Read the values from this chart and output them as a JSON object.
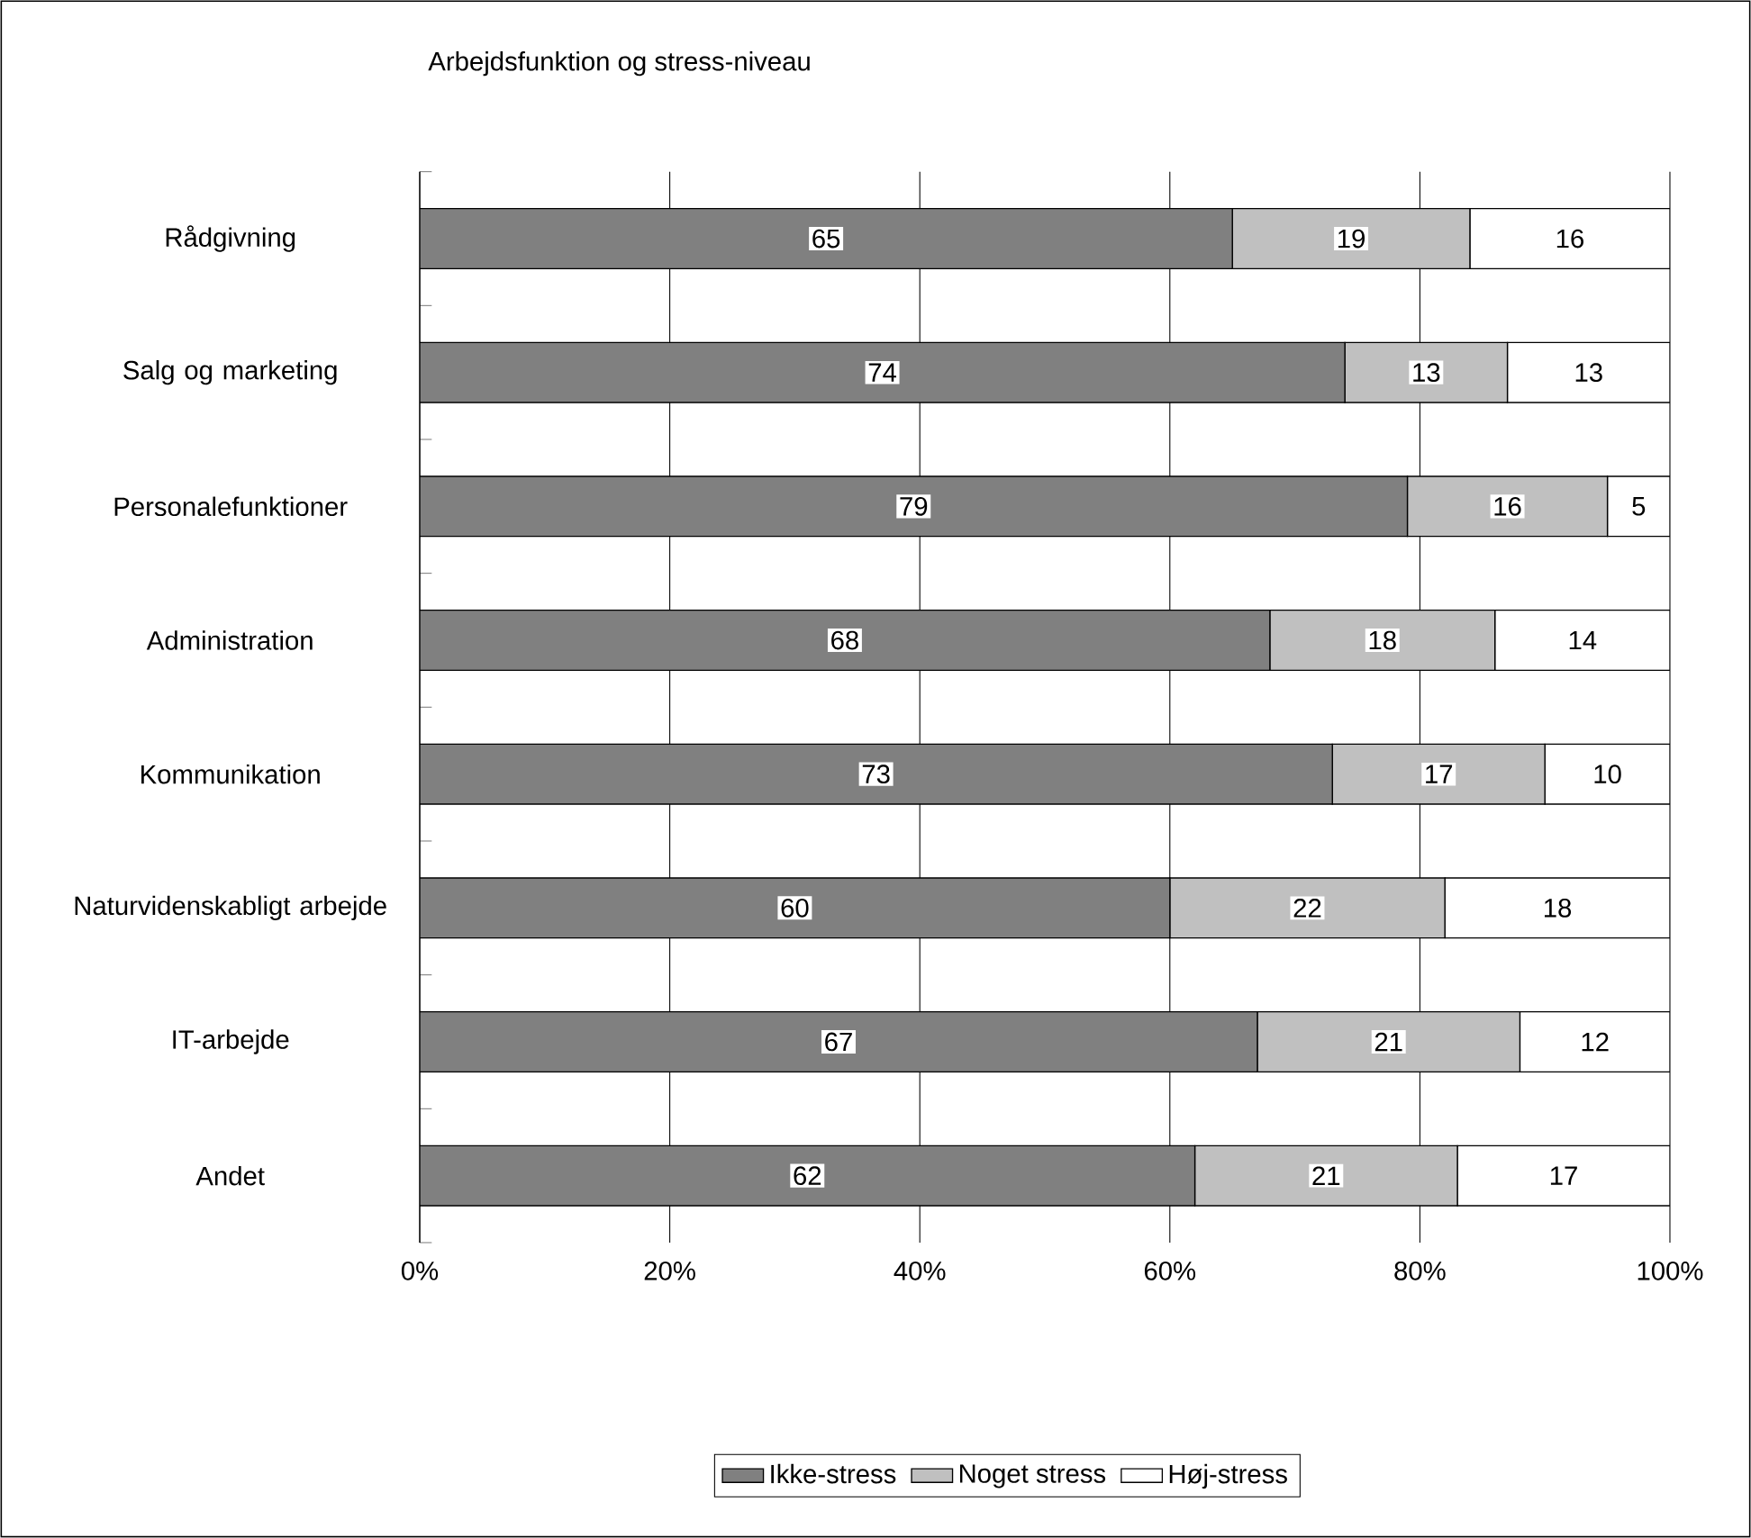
{
  "chart_data": {
    "type": "bar",
    "orientation": "horizontal",
    "stacked": true,
    "title": "Arbejdsfunktion og stress-niveau",
    "categories": [
      "Rådgivning",
      "Salg og marketing",
      "Personalefunktioner",
      "Administration",
      "Kommunikation",
      "Naturvidenskabligt arbejde",
      "IT-arbejde",
      "Andet"
    ],
    "series": [
      {
        "name": "Ikke-stress",
        "color": "#808080",
        "values": [
          65,
          74,
          79,
          68,
          73,
          60,
          67,
          62
        ]
      },
      {
        "name": "Noget stress",
        "color": "#c0c0c0",
        "values": [
          19,
          13,
          16,
          18,
          17,
          22,
          21,
          21
        ]
      },
      {
        "name": "Høj-stress",
        "color": "#ffffff",
        "values": [
          16,
          13,
          5,
          14,
          10,
          18,
          12,
          17
        ]
      }
    ],
    "xlim": [
      0,
      100
    ],
    "xticks": [
      {
        "value": 0,
        "label": "0%"
      },
      {
        "value": 20,
        "label": "20%"
      },
      {
        "value": 40,
        "label": "40%"
      },
      {
        "value": 60,
        "label": "60%"
      },
      {
        "value": 80,
        "label": "80%"
      },
      {
        "value": 100,
        "label": "100%"
      }
    ],
    "grid": "x",
    "legend": "bottom",
    "data_labels": true
  }
}
